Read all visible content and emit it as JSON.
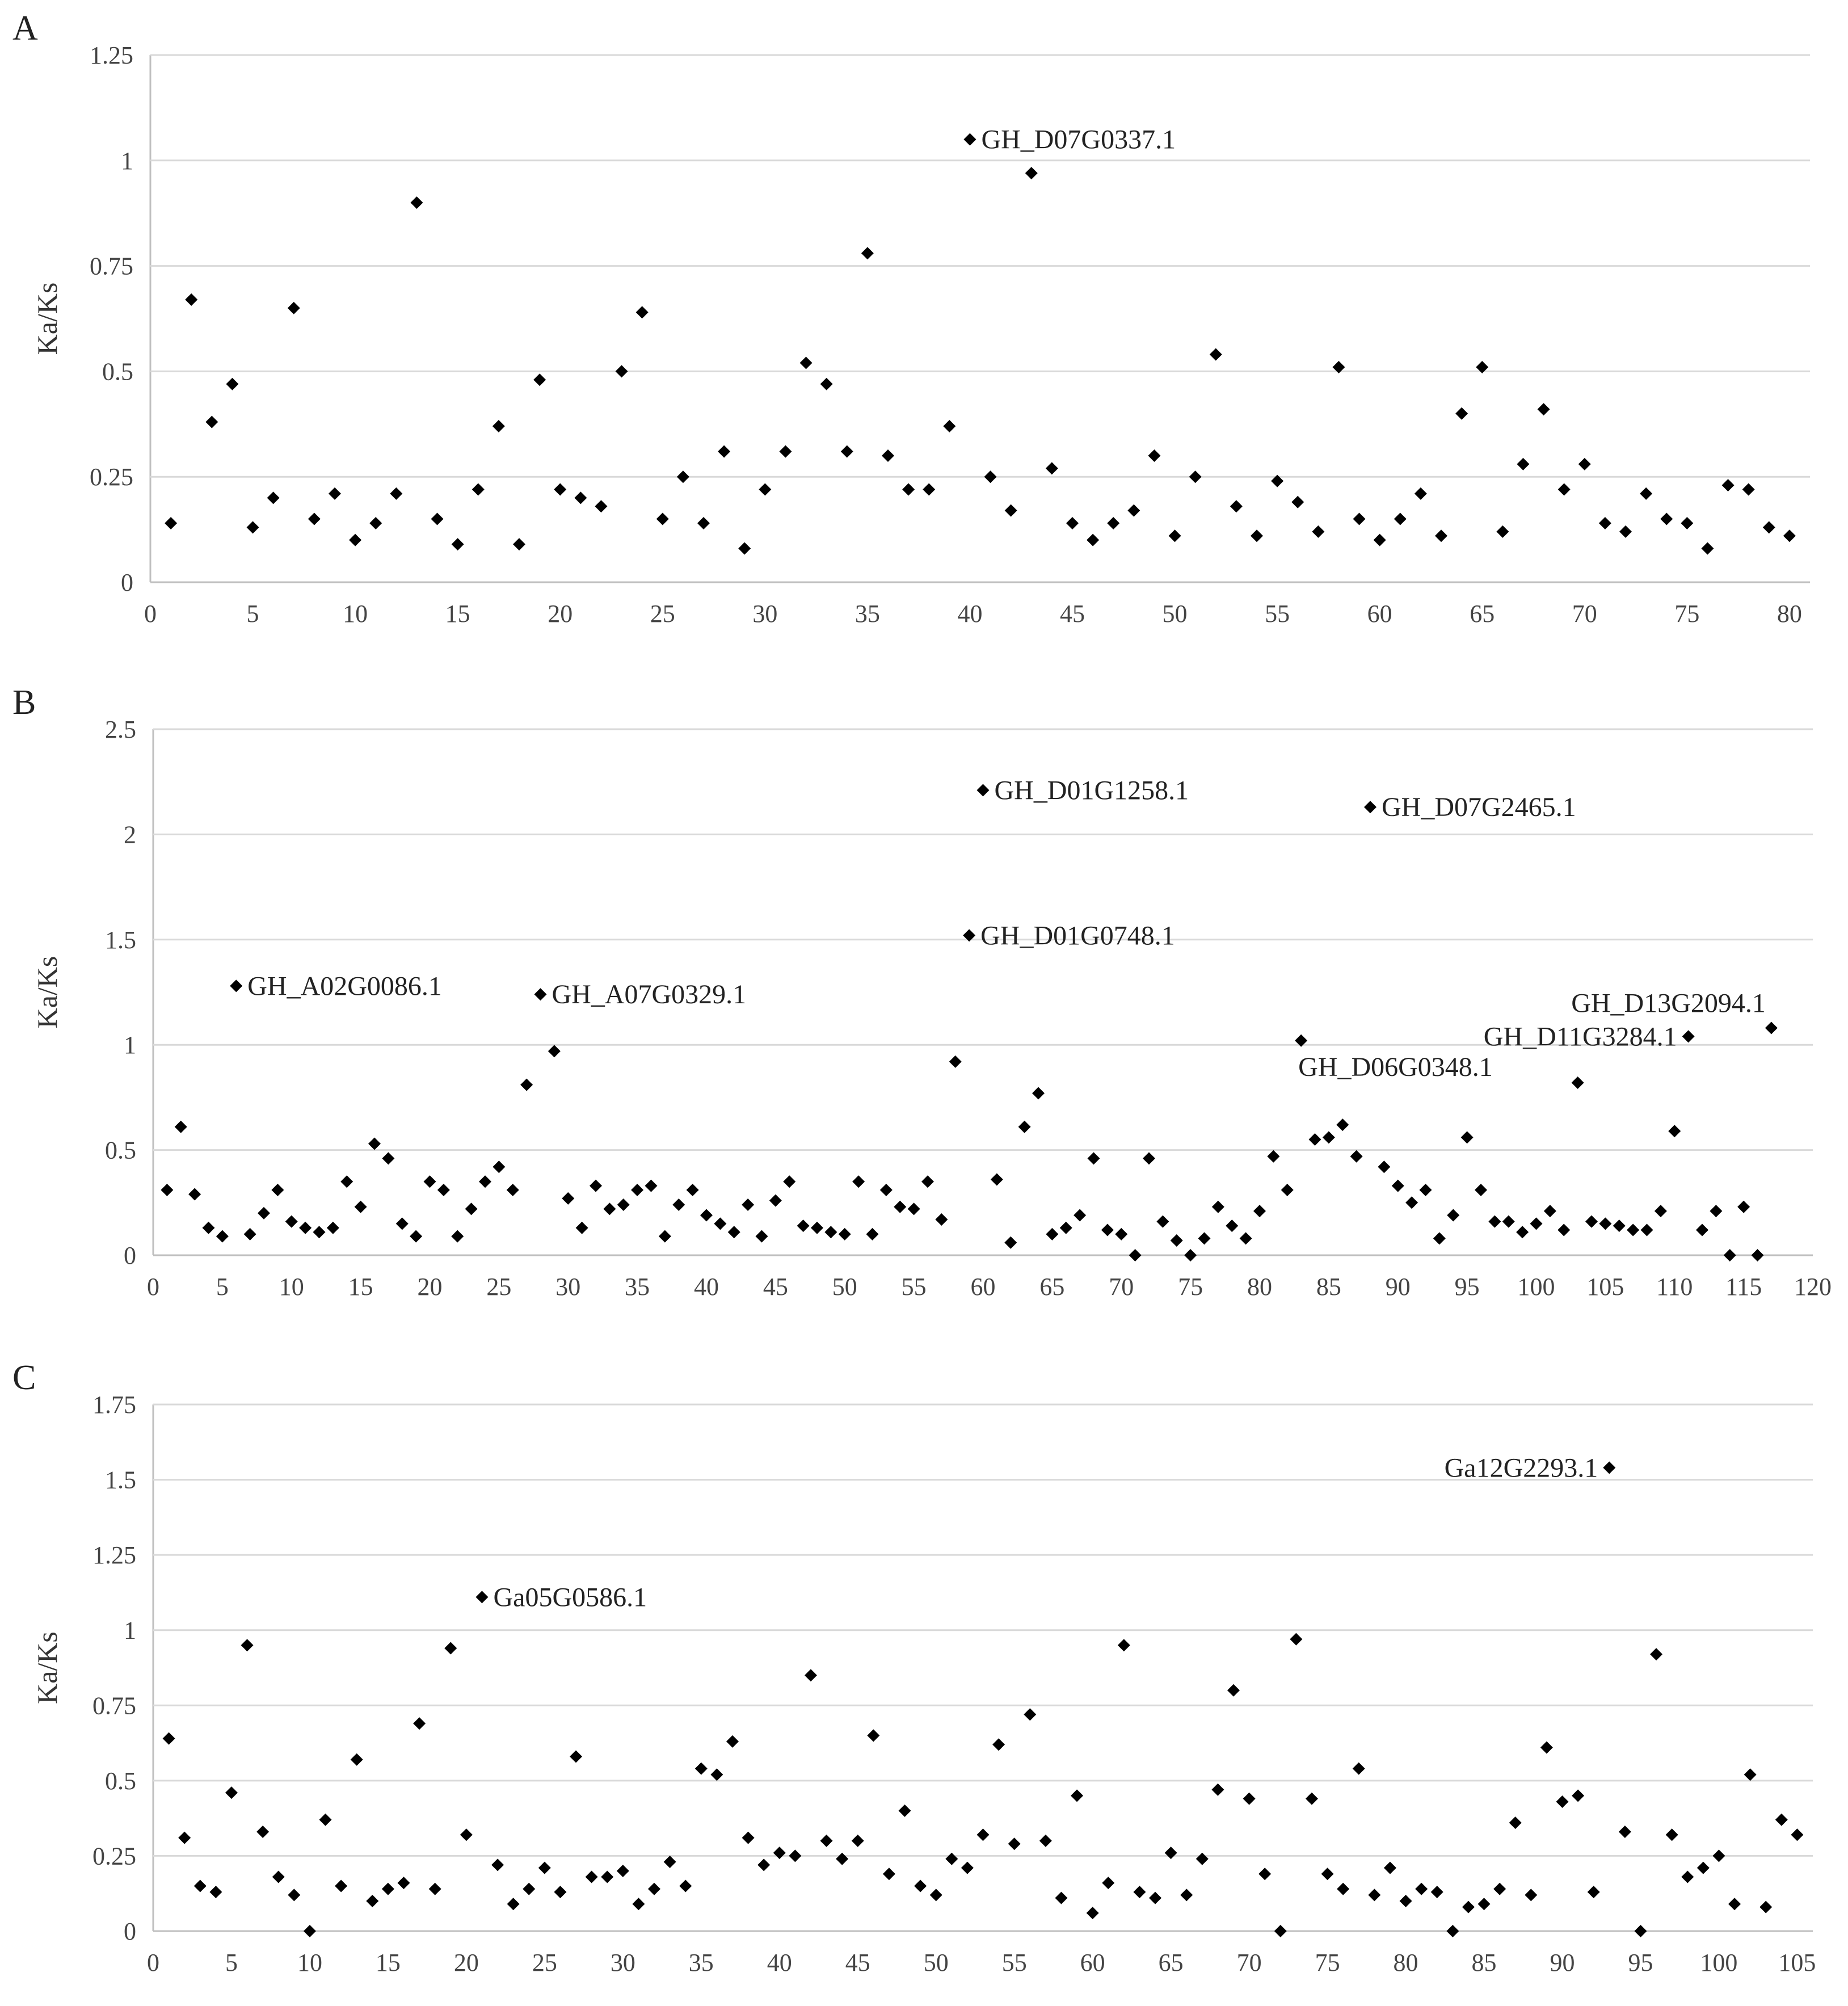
{
  "colors": {
    "marker": "#000000",
    "grid": "#d9d9d9",
    "text": "#333333"
  },
  "chart_data": [
    {
      "type": "scatter",
      "panel": "A",
      "ylabel": "Ka/Ks",
      "xlim": [
        0,
        81
      ],
      "ylim": [
        0,
        1.25
      ],
      "xticks": [
        0,
        5,
        10,
        15,
        20,
        25,
        30,
        35,
        40,
        45,
        50,
        55,
        60,
        65,
        70,
        75,
        80
      ],
      "yticks": [
        0,
        0.25,
        0.5,
        0.75,
        1,
        1.25
      ],
      "ytick_labels": [
        "0",
        "0.25",
        "0.5",
        "0.75",
        "1",
        "1.25"
      ],
      "grid": true,
      "marker": "diamond",
      "values": [
        0.14,
        0.67,
        0.38,
        0.47,
        0.13,
        0.2,
        0.65,
        0.15,
        0.21,
        0.1,
        0.14,
        0.21,
        0.9,
        0.15,
        0.09,
        0.22,
        0.37,
        0.09,
        0.48,
        0.22,
        0.2,
        0.18,
        0.5,
        0.64,
        0.15,
        0.25,
        0.14,
        0.31,
        0.08,
        0.22,
        0.31,
        0.52,
        0.47,
        0.31,
        0.78,
        0.3,
        0.22,
        0.22,
        0.37,
        1.05,
        0.25,
        0.17,
        0.97,
        0.27,
        0.14,
        0.1,
        0.14,
        0.17,
        0.3,
        0.11,
        0.25,
        0.54,
        0.18,
        0.11,
        0.24,
        0.19,
        0.12,
        0.51,
        0.15,
        0.1,
        0.15,
        0.21,
        0.11,
        0.4,
        0.51,
        0.12,
        0.28,
        0.41,
        0.22,
        0.28,
        0.14,
        0.12,
        0.21,
        0.15,
        0.14,
        0.08,
        0.23,
        0.22,
        0.13,
        0.11
      ],
      "annotations": [
        {
          "x": 40,
          "y": 1.05,
          "text": "GH_D07G0337.1",
          "position": "right"
        }
      ]
    },
    {
      "type": "scatter",
      "panel": "B",
      "ylabel": "Ka/Ks",
      "xlim": [
        0,
        120
      ],
      "ylim": [
        0,
        2.5
      ],
      "xticks": [
        0,
        5,
        10,
        15,
        20,
        25,
        30,
        35,
        40,
        45,
        50,
        55,
        60,
        65,
        70,
        75,
        80,
        85,
        90,
        95,
        100,
        105,
        110,
        115,
        120
      ],
      "yticks": [
        0,
        0.5,
        1,
        1.5,
        2,
        2.5
      ],
      "ytick_labels": [
        "0",
        "0.5",
        "1",
        "1.5",
        "2",
        "2.5"
      ],
      "grid": true,
      "marker": "diamond",
      "values": [
        0.31,
        0.61,
        0.29,
        0.13,
        0.09,
        1.28,
        0.1,
        0.2,
        0.31,
        0.16,
        0.13,
        0.11,
        0.13,
        0.35,
        0.23,
        0.53,
        0.46,
        0.15,
        0.09,
        0.35,
        0.31,
        0.09,
        0.22,
        0.35,
        0.42,
        0.31,
        0.81,
        1.24,
        0.97,
        0.27,
        0.13,
        0.33,
        0.22,
        0.24,
        0.31,
        0.33,
        0.09,
        0.24,
        0.31,
        0.19,
        0.15,
        0.11,
        0.24,
        0.09,
        0.26,
        0.35,
        0.14,
        0.13,
        0.11,
        0.1,
        0.35,
        0.1,
        0.31,
        0.23,
        0.22,
        0.35,
        0.17,
        0.92,
        1.52,
        2.21,
        0.36,
        0.06,
        0.61,
        0.77,
        0.1,
        0.13,
        0.19,
        0.46,
        0.12,
        0.1,
        0.0,
        0.46,
        0.16,
        0.07,
        0.0,
        0.08,
        0.23,
        0.14,
        0.08,
        0.21,
        0.47,
        0.31,
        1.02,
        0.55,
        0.56,
        0.62,
        0.47,
        2.13,
        0.42,
        0.33,
        0.25,
        0.31,
        0.08,
        0.19,
        0.56,
        0.31,
        0.16,
        0.16,
        0.11,
        0.15,
        0.21,
        0.12,
        0.82,
        0.16,
        0.15,
        0.14,
        0.12,
        0.12,
        0.21,
        0.59,
        1.04,
        0.12,
        0.21,
        0.0,
        0.23,
        0.0,
        1.08
      ],
      "annotations": [
        {
          "x": 6,
          "y": 1.28,
          "text": "GH_A02G0086.1",
          "position": "right"
        },
        {
          "x": 28,
          "y": 1.24,
          "text": "GH_A07G0329.1",
          "position": "right"
        },
        {
          "x": 60,
          "y": 2.21,
          "text": "GH_D01G1258.1",
          "position": "right"
        },
        {
          "x": 88,
          "y": 2.13,
          "text": "GH_D07G2465.1",
          "position": "right"
        },
        {
          "x": 59,
          "y": 1.52,
          "text": "GH_D01G0748.1",
          "position": "right"
        },
        {
          "x": 117,
          "y": 1.08,
          "text": "GH_D13G2094.1",
          "position": "above-left"
        },
        {
          "x": 111,
          "y": 1.04,
          "text": "GH_D11G3284.1",
          "position": "left"
        },
        {
          "x": 83,
          "y": 1.02,
          "text": "GH_D06G0348.1",
          "position": "below"
        }
      ]
    },
    {
      "type": "scatter",
      "panel": "C",
      "ylabel": "Ka/Ks",
      "xlim": [
        0,
        106
      ],
      "ylim": [
        0,
        1.75
      ],
      "xticks": [
        0,
        5,
        10,
        15,
        20,
        25,
        30,
        35,
        40,
        45,
        50,
        55,
        60,
        65,
        70,
        75,
        80,
        85,
        90,
        95,
        100,
        105
      ],
      "yticks": [
        0,
        0.25,
        0.5,
        0.75,
        1,
        1.25,
        1.5,
        1.75
      ],
      "ytick_labels": [
        "0",
        "0.25",
        "0.5",
        "0.75",
        "1",
        "1.25",
        "1.5",
        "1.75"
      ],
      "grid": true,
      "marker": "diamond",
      "values": [
        0.64,
        0.31,
        0.15,
        0.13,
        0.46,
        0.95,
        0.33,
        0.18,
        0.12,
        0.0,
        0.37,
        0.15,
        0.57,
        0.1,
        0.14,
        0.16,
        0.69,
        0.14,
        0.94,
        0.32,
        1.11,
        0.22,
        0.09,
        0.14,
        0.21,
        0.13,
        0.58,
        0.18,
        0.18,
        0.2,
        0.09,
        0.14,
        0.23,
        0.15,
        0.54,
        0.52,
        0.63,
        0.31,
        0.22,
        0.26,
        0.25,
        0.85,
        0.3,
        0.24,
        0.3,
        0.65,
        0.19,
        0.4,
        0.15,
        0.12,
        0.24,
        0.21,
        0.32,
        0.62,
        0.29,
        0.72,
        0.3,
        0.11,
        0.45,
        0.06,
        0.16,
        0.95,
        0.13,
        0.11,
        0.26,
        0.12,
        0.24,
        0.47,
        0.8,
        0.44,
        0.19,
        0.0,
        0.97,
        0.44,
        0.19,
        0.14,
        0.54,
        0.12,
        0.21,
        0.1,
        0.14,
        0.13,
        0.0,
        0.08,
        0.09,
        0.14,
        0.36,
        0.12,
        0.61,
        0.43,
        0.45,
        0.13,
        1.54,
        0.33,
        0.0,
        0.92,
        0.32,
        0.18,
        0.21,
        0.25,
        0.09,
        0.52,
        0.08,
        0.37,
        0.32
      ],
      "annotations": [
        {
          "x": 21,
          "y": 1.11,
          "text": "Ga05G0586.1",
          "position": "right"
        },
        {
          "x": 93,
          "y": 1.54,
          "text": "Ga12G2293.1",
          "position": "left"
        }
      ]
    }
  ]
}
